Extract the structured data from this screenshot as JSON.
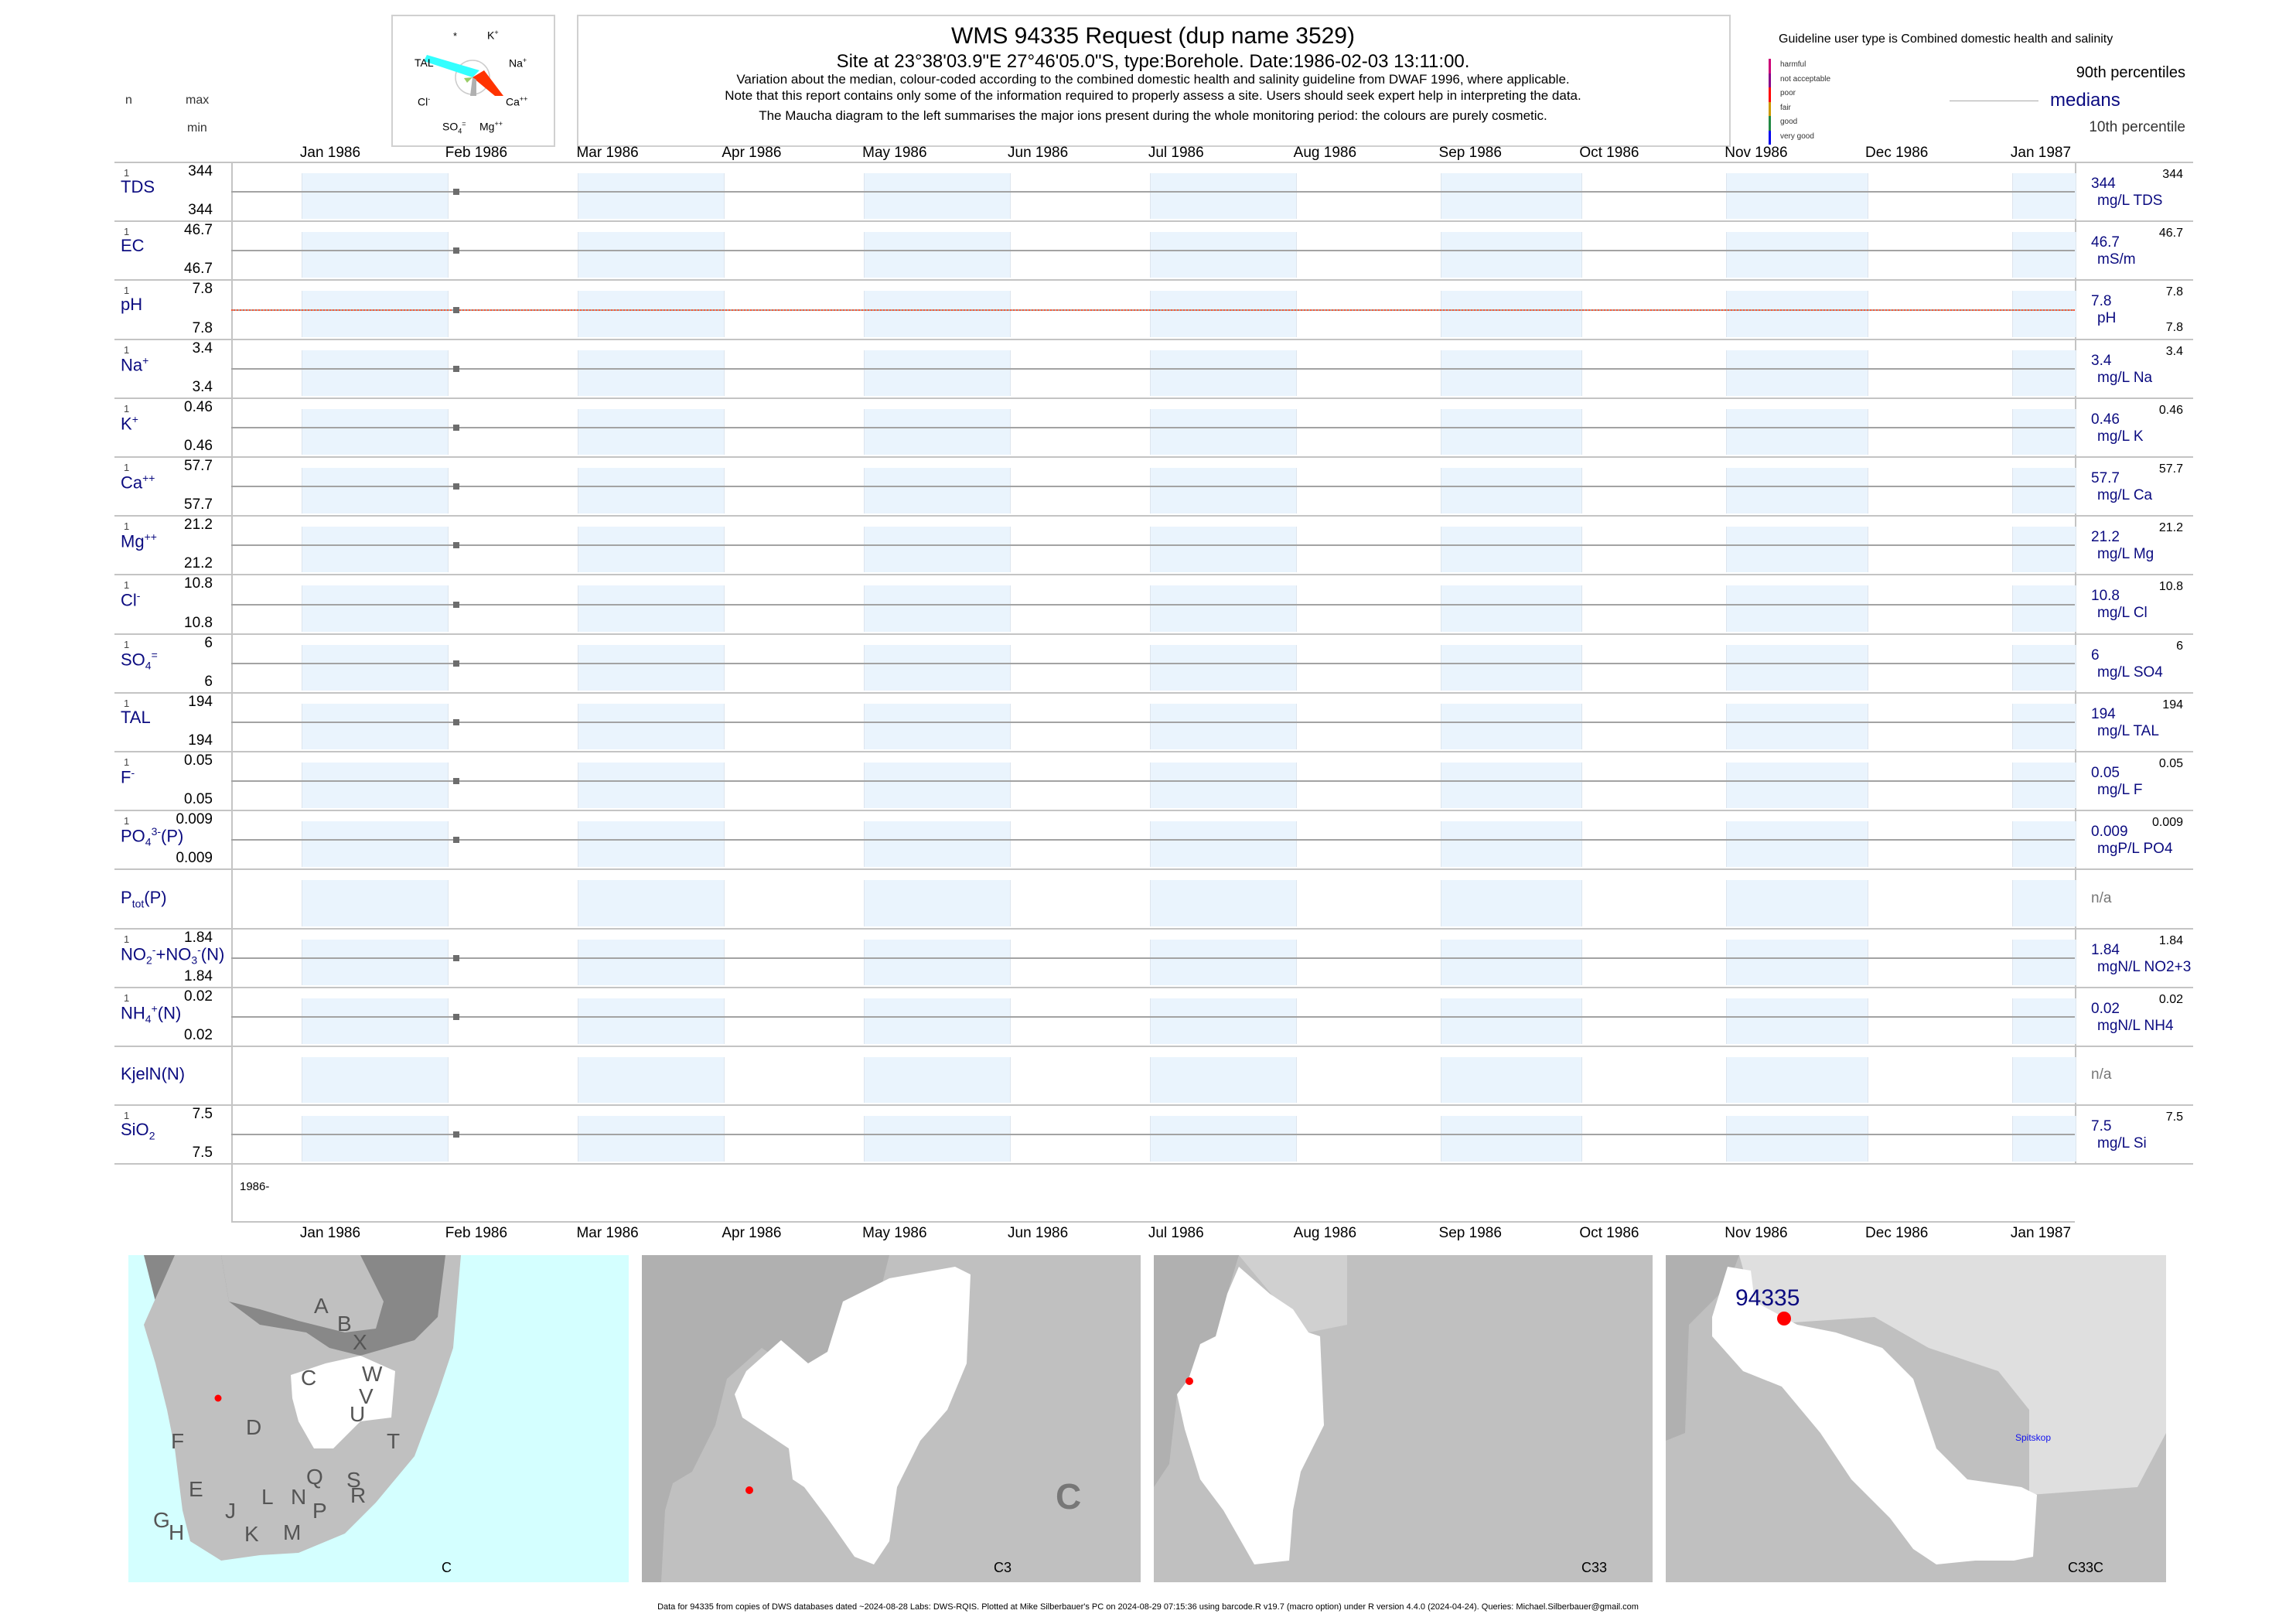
{
  "header": {
    "n_label": "n",
    "max_label": "max",
    "min_label": "min",
    "title": "WMS 94335  Request (dup name 3529)",
    "subtitle": "Site at 23°38'03.9\"E 27°46'05.0\"S, type:Borehole. Date:1986-02-03 13:11:00.",
    "note1": "Variation about the median,  colour-coded according to the combined domestic health and salinity guideline from DWAF 1996, where applicable.",
    "note2": "Note that this report contains only some of the information required to properly assess a site. Users should seek expert help in interpreting the data.",
    "note3": "The Maucha diagram to the left summarises the major ions present during the whole monitoring period: the colours are purely cosmetic."
  },
  "maucha": {
    "labels": [
      "*",
      "K",
      "TAL",
      "Na",
      "Cl",
      "Ca",
      "SO",
      "Mg"
    ],
    "sups": [
      "",
      "+",
      "",
      "+",
      "-",
      "++",
      "=",
      "++"
    ],
    "subs": [
      "",
      "",
      "",
      "",
      "",
      "",
      "4",
      ""
    ],
    "colors": {
      "TAL": "#33ffff",
      "Ca": "#ff3300",
      "SO4": "#b0b0b0",
      "Cl": "#99cc66"
    }
  },
  "legend": {
    "guideline": "Guideline user type is Combined domestic health and salinity",
    "classes": [
      {
        "label": "harmful",
        "color": "#cc0077"
      },
      {
        "label": "not acceptable",
        "color": "#880088"
      },
      {
        "label": "poor",
        "color": "#ff0000"
      },
      {
        "label": "fair",
        "color": "#cc9900"
      },
      {
        "label": "good",
        "color": "#228844"
      },
      {
        "label": "very good",
        "color": "#0000ee"
      }
    ],
    "p90": "90th percentiles",
    "medians": "medians",
    "p10": "10th percentile"
  },
  "axis": {
    "months": [
      "Jan 1986",
      "Feb 1986",
      "Mar 1986",
      "Apr 1986",
      "May 1986",
      "Jun 1986",
      "Jul 1986",
      "Aug 1986",
      "Sep 1986",
      "Oct 1986",
      "Nov 1986",
      "Dec 1986",
      "Jan 1987"
    ],
    "year_marker": "1986-"
  },
  "params": [
    {
      "label": [
        {
          "t": "TDS"
        }
      ],
      "n": "1",
      "max": "344",
      "min": "344",
      "rv": "344",
      "ru": "mg/L TDS",
      "rmax": "344"
    },
    {
      "label": [
        {
          "t": "EC"
        }
      ],
      "n": "1",
      "max": "46.7",
      "min": "46.7",
      "rv": "46.7",
      "ru": "mS/m",
      "rmax": "46.7"
    },
    {
      "label": [
        {
          "t": "pH"
        }
      ],
      "n": "1",
      "max": "7.8",
      "min": "7.8",
      "rv": "7.8",
      "ru": "pH",
      "rmax": "7.8",
      "rmin": "7.8",
      "guide": true
    },
    {
      "label": [
        {
          "t": "Na"
        },
        {
          "t": "+",
          "k": "sup"
        }
      ],
      "n": "1",
      "max": "3.4",
      "min": "3.4",
      "rv": "3.4",
      "ru": "mg/L Na",
      "rmax": "3.4"
    },
    {
      "label": [
        {
          "t": "K"
        },
        {
          "t": "+",
          "k": "sup"
        }
      ],
      "n": "1",
      "max": "0.46",
      "min": "0.46",
      "rv": "0.46",
      "ru": "mg/L K",
      "rmax": "0.46"
    },
    {
      "label": [
        {
          "t": "Ca"
        },
        {
          "t": "++",
          "k": "sup"
        }
      ],
      "n": "1",
      "max": "57.7",
      "min": "57.7",
      "rv": "57.7",
      "ru": "mg/L Ca",
      "rmax": "57.7"
    },
    {
      "label": [
        {
          "t": "Mg"
        },
        {
          "t": "++",
          "k": "sup"
        }
      ],
      "n": "1",
      "max": "21.2",
      "min": "21.2",
      "rv": "21.2",
      "ru": "mg/L Mg",
      "rmax": "21.2"
    },
    {
      "label": [
        {
          "t": "Cl"
        },
        {
          "t": "-",
          "k": "sup"
        }
      ],
      "n": "1",
      "max": "10.8",
      "min": "10.8",
      "rv": "10.8",
      "ru": "mg/L Cl",
      "rmax": "10.8"
    },
    {
      "label": [
        {
          "t": "SO"
        },
        {
          "t": "4",
          "k": "sub"
        },
        {
          "t": "=",
          "k": "sup"
        }
      ],
      "n": "1",
      "max": "6",
      "min": "6",
      "rv": "6",
      "ru": "mg/L SO4",
      "rmax": "6"
    },
    {
      "label": [
        {
          "t": "TAL"
        }
      ],
      "n": "1",
      "max": "194",
      "min": "194",
      "rv": "194",
      "ru": "mg/L TAL",
      "rmax": "194"
    },
    {
      "label": [
        {
          "t": "F"
        },
        {
          "t": "-",
          "k": "sup"
        }
      ],
      "n": "1",
      "max": "0.05",
      "min": "0.05",
      "rv": "0.05",
      "ru": "mg/L F",
      "rmax": "0.05"
    },
    {
      "label": [
        {
          "t": "PO"
        },
        {
          "t": "4",
          "k": "sub"
        },
        {
          "t": "3-",
          "k": "sup"
        },
        {
          "t": "(P)"
        }
      ],
      "n": "1",
      "max": "0.009",
      "min": "0.009",
      "rv": "0.009",
      "ru": "mgP/L PO4",
      "rmax": "0.009"
    },
    {
      "label": [
        {
          "t": "P"
        },
        {
          "t": "tot",
          "k": "sub"
        },
        {
          "t": "(P)"
        }
      ],
      "rv": "n/a"
    },
    {
      "label": [
        {
          "t": "NO"
        },
        {
          "t": "2",
          "k": "sub"
        },
        {
          "t": "-",
          "k": "sup"
        },
        {
          "t": "+NO"
        },
        {
          "t": "3",
          "k": "sub"
        },
        {
          "t": "-",
          "k": "sup"
        },
        {
          "t": "(N)"
        }
      ],
      "n": "1",
      "max": "1.84",
      "min": "1.84",
      "rv": "1.84",
      "ru": "mgN/L NO2+3",
      "rmax": "1.84"
    },
    {
      "label": [
        {
          "t": "NH"
        },
        {
          "t": "4",
          "k": "sub"
        },
        {
          "t": "+",
          "k": "sup"
        },
        {
          "t": "(N)"
        }
      ],
      "n": "1",
      "max": "0.02",
      "min": "0.02",
      "rv": "0.02",
      "ru": "mgN/L NH4",
      "rmax": "0.02"
    },
    {
      "label": [
        {
          "t": "KjelN(N)"
        }
      ],
      "rv": "n/a"
    },
    {
      "label": [
        {
          "t": "SiO"
        },
        {
          "t": "2",
          "k": "sub"
        }
      ],
      "n": "1",
      "max": "7.5",
      "min": "7.5",
      "rv": "7.5",
      "ru": "mg/L Si",
      "rmax": "7.5"
    }
  ],
  "chart_data": {
    "type": "line",
    "x_range": [
      "1985-12-17",
      "1987-01-15"
    ],
    "sample_date": "1986-02-03",
    "series": [
      {
        "name": "TDS",
        "values": [
          344
        ]
      },
      {
        "name": "EC",
        "values": [
          46.7
        ]
      },
      {
        "name": "pH",
        "values": [
          7.8
        ]
      },
      {
        "name": "Na",
        "values": [
          3.4
        ]
      },
      {
        "name": "K",
        "values": [
          0.46
        ]
      },
      {
        "name": "Ca",
        "values": [
          57.7
        ]
      },
      {
        "name": "Mg",
        "values": [
          21.2
        ]
      },
      {
        "name": "Cl",
        "values": [
          10.8
        ]
      },
      {
        "name": "SO4",
        "values": [
          6
        ]
      },
      {
        "name": "TAL",
        "values": [
          194
        ]
      },
      {
        "name": "F",
        "values": [
          0.05
        ]
      },
      {
        "name": "PO4(P)",
        "values": [
          0.009
        ]
      },
      {
        "name": "Ptot(P)",
        "values": []
      },
      {
        "name": "NO2+NO3(N)",
        "values": [
          1.84
        ]
      },
      {
        "name": "NH4(N)",
        "values": [
          0.02
        ]
      },
      {
        "name": "KjelN(N)",
        "values": []
      },
      {
        "name": "SiO2",
        "values": [
          7.5
        ]
      }
    ],
    "grid": false,
    "colors": {
      "band": "#eaf4fd",
      "median_line": "#a3a3a3",
      "point": "#6d6d6d",
      "ph_guideline": "#ff5533"
    }
  },
  "maps": {
    "m1_letters": [
      "A",
      "B",
      "X",
      "W",
      "C",
      "V",
      "U",
      "D",
      "T",
      "F",
      "E",
      "S",
      "Q",
      "N",
      "L",
      "R",
      "J",
      "P",
      "G",
      "H",
      "K",
      "M"
    ],
    "m1_label": "C",
    "m2_letter": "C",
    "m2_label": "C3",
    "m3_label": "C33",
    "m4_label": "C33C",
    "site_id": "94335",
    "dam": "Spitskop",
    "colors": {
      "sea": "#d4ffff",
      "land": "#c0c0c0",
      "outside": "#888888",
      "catchment": "#ffffff",
      "site": "#ff0000"
    }
  },
  "footer": "Data for 94335 from copies of DWS databases dated ~2024-08-28 Labs: DWS-RQIS. Plotted at Mike Silberbauer's PC on 2024-08-29 07:15:36 using barcode.R v19.7 (macro option) under R version 4.4.0 (2024-04-24). Queries: Michael.Silberbauer@gmail.com"
}
